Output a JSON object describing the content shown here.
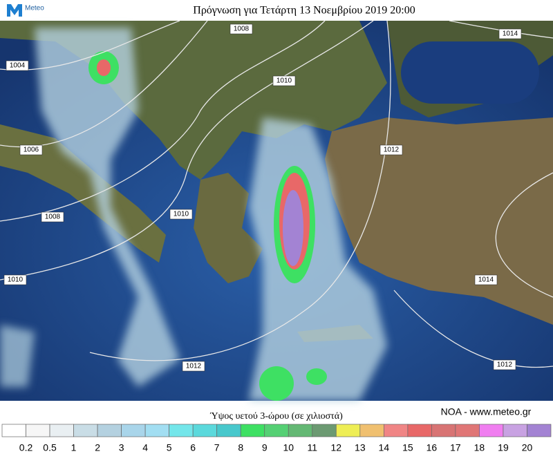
{
  "header": {
    "logo": "Meteo",
    "title": "Πρόγνωση για Τετάρτη 13 Νοεμβρίου 2019 20:00"
  },
  "isobars": [
    {
      "label": "1008"
    },
    {
      "label": "1014"
    },
    {
      "label": "1004"
    },
    {
      "label": "1010"
    },
    {
      "label": "1006"
    },
    {
      "label": "1012"
    },
    {
      "label": "1008"
    },
    {
      "label": "1010"
    },
    {
      "label": "1010"
    },
    {
      "label": "1014"
    },
    {
      "label": "1012"
    },
    {
      "label": "1012"
    }
  ],
  "legend": {
    "title": "Ύψος υετού 3-ώρου (σε χιλιοστά)",
    "credit": "NOA - www.meteo.gr",
    "colors": [
      "#ffffff",
      "#f6f6f6",
      "#e9eff2",
      "#c9dde6",
      "#b4d1e0",
      "#a9d5ea",
      "#a2def2",
      "#74e6ea",
      "#5bd9dc",
      "#48c8cc",
      "#3ee063",
      "#55d074",
      "#64b874",
      "#6c9a72",
      "#eeee55",
      "#f0c070",
      "#f08585",
      "#e86868",
      "#d87474",
      "#e07676",
      "#f07ef0",
      "#c8a2e2",
      "#a383d3"
    ],
    "ticks": [
      0.2,
      0.5,
      1,
      2,
      3,
      4,
      5,
      6,
      7,
      8,
      9,
      10,
      11,
      12,
      13,
      14,
      15,
      16,
      17,
      18,
      19,
      20
    ]
  }
}
